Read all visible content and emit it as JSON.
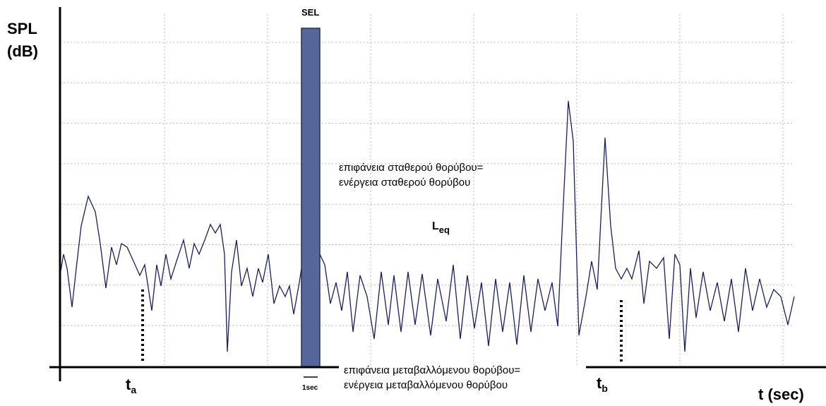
{
  "axis": {
    "y_label_line1": "SPL",
    "y_label_line2": "(dB)",
    "x_label": "t (sec)"
  },
  "sel": {
    "label": "SEL",
    "width_label": "1sec"
  },
  "markers": {
    "ta": {
      "main": "t",
      "sub": "a"
    },
    "tb": {
      "main": "t",
      "sub": "b"
    }
  },
  "leq": {
    "main": "L",
    "sub": "eq"
  },
  "steady_note": [
    "επιφάνεια σταθερού θορύβου=",
    "ενέργεια σταθερού θορύβου"
  ],
  "varying_note": [
    "επιφάνεια μεταβαλλόμενου θορύβου=",
    "ενέργεια μεταβαλλόμενου θορύβου"
  ]
}
